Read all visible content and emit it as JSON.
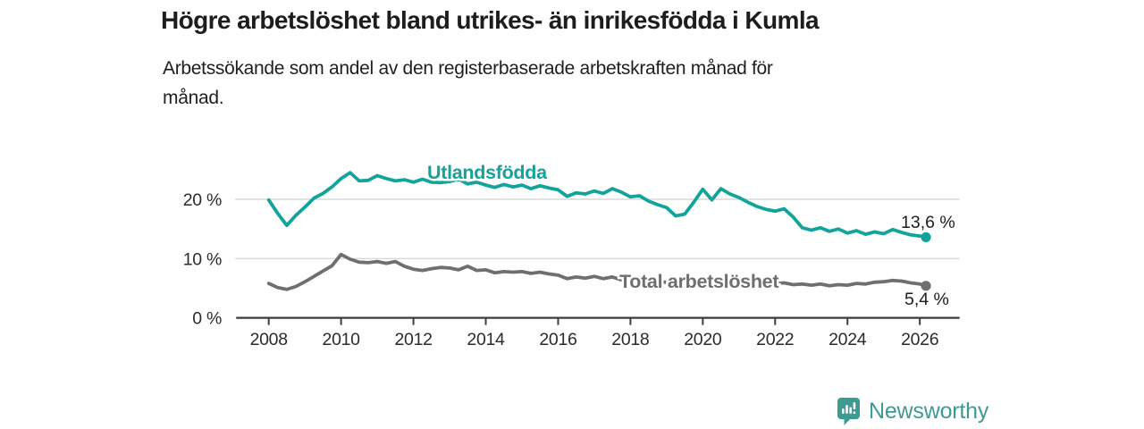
{
  "page": {
    "title": "Högre arbetslöshet bland utrikes- än inrikesfödda i Kumla",
    "subtitle_line1": "Arbetssökande som andel av den registerbaserade arbetskraften månad för",
    "subtitle_line2": "månad."
  },
  "footer": {
    "brand": "Newsworthy",
    "logo_icon": "bar-chart-speech-bubble-icon"
  },
  "colors": {
    "series_teal": "#12a49b",
    "series_gray": "#6f6f6f",
    "brand_teal": "#3d9b94",
    "axis": "#3d3d3d",
    "grid": "#d9d9d9",
    "label_text": "#1d1d1d",
    "tick_text": "#2b2b2b"
  },
  "chart_data": {
    "type": "line",
    "title": "Högre arbetslöshet bland utrikes- än inrikesfödda i Kumla",
    "subtitle": "Arbetssökande som andel av den registerbaserade arbetskraften månad för månad.",
    "x_unit": "decimal year (monthly share of labour force, sampled quarterly)",
    "xlim": [
      2007.1,
      2027.1
    ],
    "ylim": [
      0,
      26
    ],
    "grid": "horizontal",
    "legend": "inline-line-labels",
    "x_ticks": [
      2008,
      2010,
      2012,
      2014,
      2016,
      2018,
      2020,
      2022,
      2024,
      2026
    ],
    "y_ticks": [
      {
        "value": 0,
        "label": "0 %"
      },
      {
        "value": 10,
        "label": "10 %"
      },
      {
        "value": 20,
        "label": "20 %"
      }
    ],
    "x": [
      2008.0,
      2008.25,
      2008.5,
      2008.75,
      2009.0,
      2009.25,
      2009.5,
      2009.75,
      2010.0,
      2010.25,
      2010.5,
      2010.75,
      2011.0,
      2011.25,
      2011.5,
      2011.75,
      2012.0,
      2012.25,
      2012.5,
      2012.75,
      2013.0,
      2013.25,
      2013.5,
      2013.75,
      2014.0,
      2014.25,
      2014.5,
      2014.75,
      2015.0,
      2015.25,
      2015.5,
      2015.75,
      2016.0,
      2016.25,
      2016.5,
      2016.75,
      2017.0,
      2017.25,
      2017.5,
      2017.75,
      2018.0,
      2018.25,
      2018.5,
      2018.75,
      2019.0,
      2019.25,
      2019.5,
      2019.75,
      2020.0,
      2020.25,
      2020.5,
      2020.75,
      2021.0,
      2021.25,
      2021.5,
      2021.75,
      2022.0,
      2022.25,
      2022.5,
      2022.75,
      2023.0,
      2023.25,
      2023.5,
      2023.75,
      2024.0,
      2024.25,
      2024.5,
      2024.75,
      2025.0,
      2025.25,
      2025.5,
      2025.75,
      2026.0,
      2026.17
    ],
    "series": [
      {
        "name": "Utlandsfödda",
        "color": "#12a49b",
        "end_label": "13,6 %",
        "end_value": 13.6,
        "values": [
          19.9,
          17.6,
          15.6,
          17.3,
          18.7,
          20.2,
          21.0,
          22.1,
          23.5,
          24.5,
          23.1,
          23.2,
          24.0,
          23.5,
          23.1,
          23.3,
          22.9,
          23.4,
          22.9,
          22.8,
          23.0,
          23.4,
          22.6,
          22.9,
          22.4,
          22.0,
          22.5,
          22.1,
          22.4,
          21.8,
          22.3,
          21.9,
          21.6,
          20.5,
          21.1,
          20.9,
          21.4,
          21.0,
          21.8,
          21.2,
          20.4,
          20.6,
          19.7,
          19.1,
          18.6,
          17.2,
          17.5,
          19.5,
          21.7,
          19.9,
          21.8,
          20.9,
          20.3,
          19.5,
          18.8,
          18.3,
          18.0,
          18.4,
          17.0,
          15.2,
          14.8,
          15.2,
          14.6,
          15.0,
          14.3,
          14.7,
          14.1,
          14.5,
          14.2,
          14.9,
          14.4,
          14.0,
          13.8,
          13.6
        ]
      },
      {
        "name": "Total arbetslöshet",
        "color": "#6f6f6f",
        "end_label": "5,4 %",
        "end_value": 5.4,
        "values": [
          5.8,
          5.1,
          4.8,
          5.3,
          6.1,
          7.0,
          7.9,
          8.8,
          10.7,
          9.9,
          9.4,
          9.3,
          9.5,
          9.2,
          9.5,
          8.7,
          8.2,
          8.0,
          8.3,
          8.5,
          8.4,
          8.1,
          8.7,
          8.0,
          8.1,
          7.6,
          7.8,
          7.7,
          7.8,
          7.5,
          7.7,
          7.4,
          7.2,
          6.6,
          6.9,
          6.7,
          7.0,
          6.6,
          6.9,
          6.4,
          6.3,
          6.4,
          6.0,
          6.1,
          6.0,
          5.8,
          6.1,
          6.3,
          6.5,
          6.9,
          6.6,
          6.3,
          6.2,
          6.0,
          5.9,
          5.8,
          5.8,
          5.9,
          5.6,
          5.7,
          5.5,
          5.7,
          5.4,
          5.6,
          5.5,
          5.8,
          5.7,
          6.0,
          6.1,
          6.3,
          6.2,
          5.9,
          5.7,
          5.4
        ]
      }
    ]
  }
}
